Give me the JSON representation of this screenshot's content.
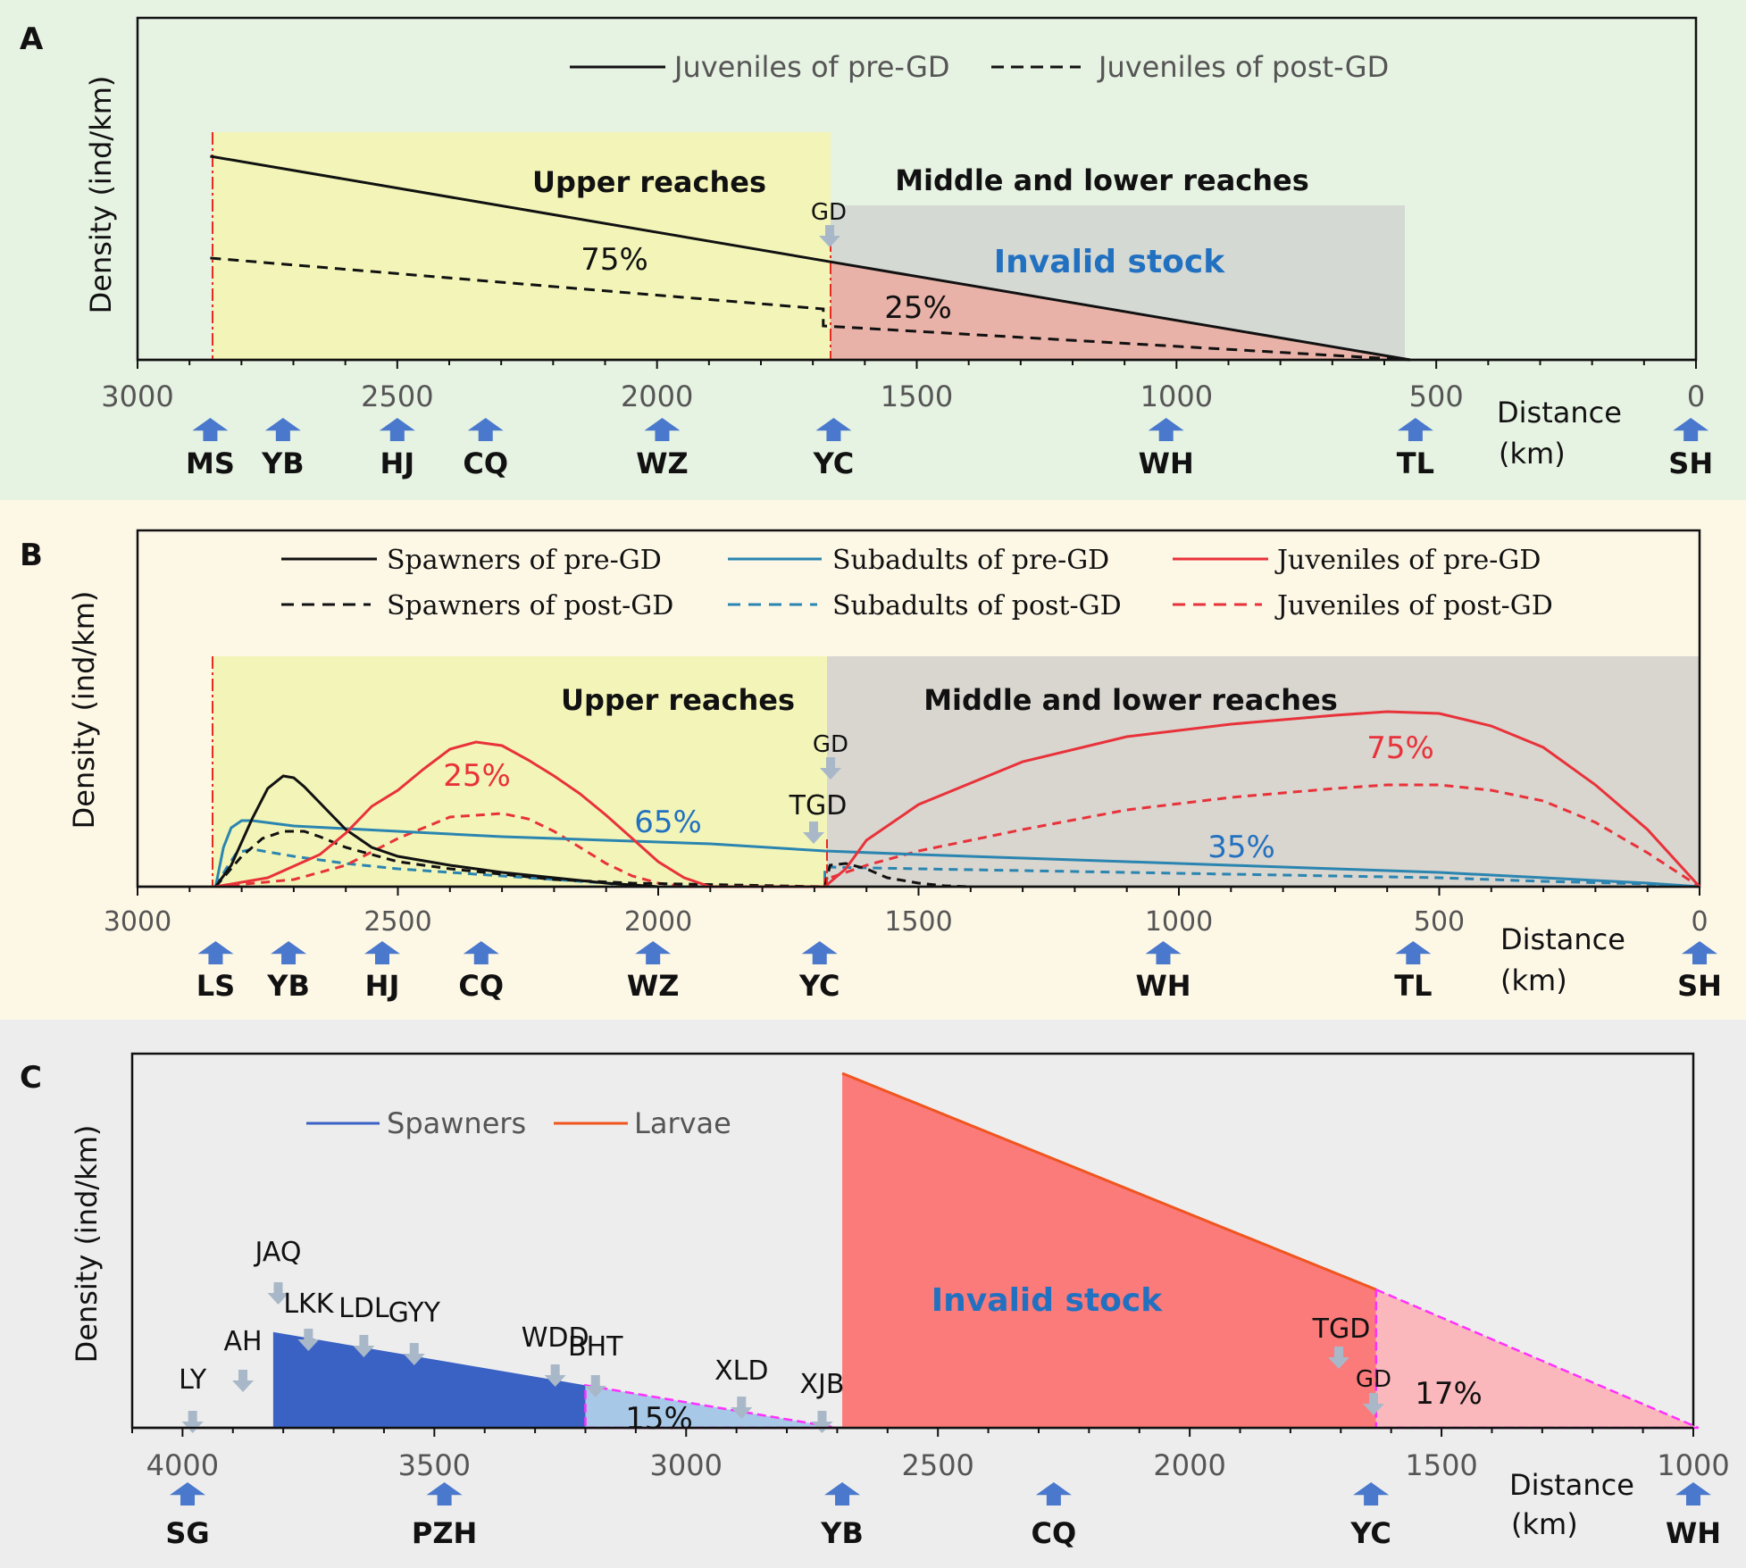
{
  "colors": {
    "panel_a_bg": "#e6f2e2",
    "panel_b_bg": "#fdf7e6",
    "panel_c_bg": "#ededed",
    "upper_zone": "#f3f5b8",
    "middle_zone": "#d9d5cf",
    "invalid_zone": "#d5d9d4",
    "pink_area": "#e8b2a8",
    "blue_arrow": "#4a78cc",
    "gray_arrow": "#a8b8c8",
    "black": "#111111",
    "teal": "#2a85b0",
    "red": "#e8323a",
    "blue_text": "#2271c0",
    "spawners_blue": "#3a62c4",
    "light_blue": "#a8c8e8",
    "invalid_red": "#fb7a7a",
    "light_pink": "#fbb8bc",
    "larvae_orange": "#f0551f",
    "magenta": "#ff30ff",
    "dash_red": "#e82b1f"
  },
  "chart_data": [
    {
      "panel": "A",
      "type": "line",
      "ylabel": "Density (ind/km)",
      "xlabel": "Distance (km)",
      "xlim": [
        3000,
        0
      ],
      "xticks": [
        3000,
        2500,
        2000,
        1500,
        1000,
        500,
        0
      ],
      "legend": [
        "Juveniles of pre-GD",
        "Juveniles of post-GD"
      ],
      "series": [
        {
          "name": "Juveniles of pre-GD",
          "style": "solid",
          "x": [
            2860,
            1670,
            550
          ],
          "y": [
            0.6,
            0.29,
            0
          ]
        },
        {
          "name": "Juveniles of post-GD",
          "style": "dashed",
          "x": [
            2860,
            1680,
            1680,
            550
          ],
          "y": [
            0.3,
            0.15,
            0.1,
            0
          ]
        }
      ],
      "zones": [
        {
          "label": "Upper reaches",
          "x": [
            2860,
            1670
          ]
        },
        {
          "label": "Middle and lower reaches",
          "x": [
            1670,
            550
          ]
        }
      ],
      "annotations": [
        "Invalid stock",
        "GD",
        "75%",
        "25%"
      ],
      "sites": [
        {
          "label": "MS",
          "x": 2860
        },
        {
          "label": "YB",
          "x": 2720
        },
        {
          "label": "HJ",
          "x": 2500
        },
        {
          "label": "CQ",
          "x": 2330
        },
        {
          "label": "WZ",
          "x": 1990
        },
        {
          "label": "YC",
          "x": 1660
        },
        {
          "label": "WH",
          "x": 1020
        },
        {
          "label": "TL",
          "x": 540
        },
        {
          "label": "SH",
          "x": 10
        }
      ]
    },
    {
      "panel": "B",
      "type": "line",
      "ylabel": "Density (ind/km)",
      "xlabel": "Distance (km)",
      "xlim": [
        3000,
        0
      ],
      "xticks": [
        3000,
        2500,
        2000,
        1500,
        1000,
        500,
        0
      ],
      "legend": [
        "Spawners of pre-GD",
        "Subadults of pre-GD",
        "Juveniles of pre-GD",
        "Spawners of post-GD",
        "Subadults of post-GD",
        "Juveniles of post-GD"
      ],
      "series": [
        {
          "name": "Spawners of pre-GD",
          "style": "solid",
          "x": [
            2850,
            2820,
            2780,
            2750,
            2720,
            2700,
            2680,
            2650,
            2600,
            2550,
            2500,
            2400,
            2300,
            2200,
            2100,
            2000
          ],
          "y": [
            0,
            0.12,
            0.38,
            0.55,
            0.62,
            0.61,
            0.56,
            0.47,
            0.32,
            0.22,
            0.17,
            0.12,
            0.08,
            0.05,
            0.02,
            0
          ]
        },
        {
          "name": "Subadults of pre-GD",
          "style": "solid",
          "x": [
            2850,
            2835,
            2820,
            2800,
            2780,
            2700,
            2500,
            2300,
            2100,
            1900,
            1680,
            1680,
            1500,
            1300,
            1100,
            900,
            700,
            500,
            300,
            100,
            0
          ],
          "y": [
            0,
            0.22,
            0.33,
            0.37,
            0.37,
            0.34,
            0.31,
            0.28,
            0.26,
            0.24,
            0.2,
            0.2,
            0.18,
            0.16,
            0.14,
            0.12,
            0.1,
            0.08,
            0.05,
            0.02,
            0
          ]
        },
        {
          "name": "Juveniles of pre-GD",
          "style": "solid",
          "x": [
            2850,
            2750,
            2650,
            2600,
            2550,
            2500,
            2450,
            2400,
            2350,
            2300,
            2250,
            2200,
            2150,
            2100,
            2050,
            2000,
            1950,
            1900,
            1680,
            1680,
            1640,
            1600,
            1500,
            1300,
            1100,
            900,
            700,
            600,
            500,
            400,
            300,
            200,
            100,
            0
          ],
          "y": [
            0,
            0.05,
            0.18,
            0.3,
            0.45,
            0.54,
            0.66,
            0.77,
            0.81,
            0.79,
            0.71,
            0.62,
            0.52,
            0.4,
            0.27,
            0.14,
            0.05,
            0,
            0,
            0,
            0.1,
            0.26,
            0.46,
            0.7,
            0.84,
            0.91,
            0.96,
            0.98,
            0.97,
            0.9,
            0.78,
            0.57,
            0.32,
            0
          ]
        },
        {
          "name": "Spawners of post-GD",
          "style": "dashed",
          "x": [
            2850,
            2800,
            2760,
            2720,
            2680,
            2650,
            2600,
            2500,
            2400,
            2300,
            2200,
            2050,
            1680,
            1670,
            1640,
            1600,
            1560,
            1500,
            1450,
            1400
          ],
          "y": [
            0,
            0.17,
            0.27,
            0.31,
            0.31,
            0.28,
            0.22,
            0.14,
            0.1,
            0.07,
            0.04,
            0.02,
            0,
            0.12,
            0.13,
            0.1,
            0.05,
            0.02,
            0.005,
            0
          ]
        },
        {
          "name": "Subadults of post-GD",
          "style": "dashed",
          "x": [
            2850,
            2830,
            2810,
            2780,
            2700,
            2600,
            2500,
            2400,
            2300,
            2200,
            2100,
            2050,
            1680,
            1680,
            1500,
            1300,
            1100,
            900,
            700,
            500,
            300,
            100,
            0
          ],
          "y": [
            0,
            0.1,
            0.19,
            0.21,
            0.17,
            0.13,
            0.1,
            0.08,
            0.06,
            0.04,
            0.02,
            0,
            0,
            0.11,
            0.1,
            0.09,
            0.08,
            0.07,
            0.06,
            0.05,
            0.03,
            0.015,
            0
          ]
        },
        {
          "name": "Juveniles of post-GD",
          "style": "dashed",
          "x": [
            2850,
            2700,
            2600,
            2500,
            2400,
            2300,
            2250,
            2200,
            2150,
            2100,
            2050,
            2000,
            1950,
            1900,
            1680,
            1680,
            1640,
            1600,
            1500,
            1300,
            1100,
            900,
            700,
            600,
            500,
            400,
            300,
            200,
            100,
            0
          ],
          "y": [
            0,
            0.04,
            0.12,
            0.27,
            0.39,
            0.41,
            0.38,
            0.31,
            0.22,
            0.13,
            0.06,
            0.02,
            0,
            0,
            0,
            0.04,
            0.08,
            0.12,
            0.2,
            0.32,
            0.43,
            0.5,
            0.55,
            0.57,
            0.57,
            0.54,
            0.48,
            0.36,
            0.19,
            0
          ]
        }
      ],
      "zones": [
        {
          "label": "Upper reaches",
          "x": [
            2850,
            1680
          ]
        },
        {
          "label": "Middle and lower reaches",
          "x": [
            1680,
            0
          ]
        }
      ],
      "annotations": [
        "25%",
        "65%",
        "75%",
        "35%",
        "GD",
        "TGD"
      ],
      "sites": [
        {
          "label": "LS",
          "x": 2850
        },
        {
          "label": "YB",
          "x": 2710
        },
        {
          "label": "HJ",
          "x": 2530
        },
        {
          "label": "CQ",
          "x": 2340
        },
        {
          "label": "WZ",
          "x": 2010
        },
        {
          "label": "YC",
          "x": 1690
        },
        {
          "label": "WH",
          "x": 1030
        },
        {
          "label": "TL",
          "x": 550
        },
        {
          "label": "SH",
          "x": 0
        }
      ]
    },
    {
      "panel": "C",
      "type": "area",
      "ylabel": "Density (ind/km)",
      "xlabel": "Distance (km)",
      "xlim": [
        4100,
        1000
      ],
      "xticks": [
        4000,
        3500,
        3000,
        2500,
        2000,
        1500,
        1000
      ],
      "legend": [
        "Spawners",
        "Larvae"
      ],
      "series": [
        {
          "name": "Spawners",
          "x": [
            3820,
            3200,
            2700
          ],
          "y": [
            0.27,
            0.12,
            0
          ]
        },
        {
          "name": "Larvae",
          "x": [
            2690,
            1630,
            990
          ],
          "y": [
            1.0,
            0.39,
            0
          ]
        }
      ],
      "annotations": [
        "Invalid stock",
        "15%",
        "17%",
        "TGD",
        "GD"
      ],
      "stations": [
        {
          "label": "LY",
          "x": 3980
        },
        {
          "label": "AH",
          "x": 3880
        },
        {
          "label": "JAQ",
          "x": 3810
        },
        {
          "label": "LKK",
          "x": 3750
        },
        {
          "label": "LDL",
          "x": 3640
        },
        {
          "label": "GYY",
          "x": 3540
        },
        {
          "label": "WDD",
          "x": 3260
        },
        {
          "label": "BHT",
          "x": 3180
        },
        {
          "label": "XLD",
          "x": 2890
        },
        {
          "label": "XJB",
          "x": 2730
        }
      ],
      "sites": [
        {
          "label": "SG",
          "x": 3990
        },
        {
          "label": "PZH",
          "x": 3480
        },
        {
          "label": "YB",
          "x": 2690
        },
        {
          "label": "CQ",
          "x": 2270
        },
        {
          "label": "YC",
          "x": 1640
        },
        {
          "label": "WH",
          "x": 1000
        }
      ]
    }
  ],
  "labels": {
    "panel_a": "A",
    "panel_b": "B",
    "panel_c": "C",
    "distance": "Distance",
    "km": "(km)",
    "ylabel": "Density (ind/km)",
    "upper_reaches": "Upper reaches",
    "middle_lower": "Middle and lower reaches",
    "invalid_stock": "Invalid stock",
    "gd": "GD",
    "tgd": "TGD",
    "pct_75": "75%",
    "pct_25": "25%",
    "pct_65": "65%",
    "pct_35": "35%",
    "pct_15": "15%",
    "pct_17": "17%",
    "legend_a_pre": "Juveniles of pre-GD",
    "legend_a_post": "Juveniles of post-GD",
    "legend_b_spawn_pre": "Spawners of pre-GD",
    "legend_b_spawn_post": "Spawners of post-GD",
    "legend_b_sub_pre": "Subadults of pre-GD",
    "legend_b_sub_post": "Subadults of post-GD",
    "legend_b_juv_pre": "Juveniles of pre-GD",
    "legend_b_juv_post": "Juveniles of post-GD",
    "legend_c_spawners": "Spawners",
    "legend_c_larvae": "Larvae"
  }
}
